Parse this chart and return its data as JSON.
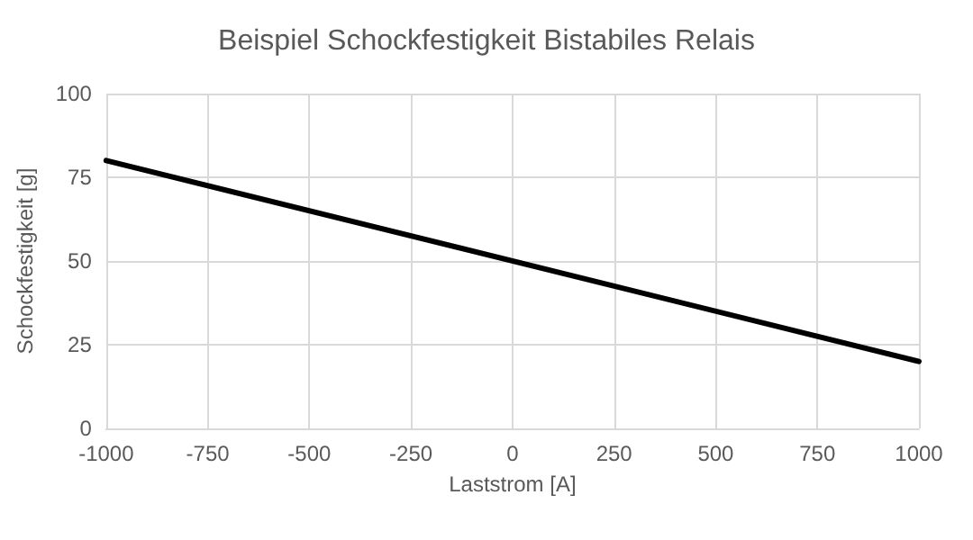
{
  "chart_data": {
    "type": "line",
    "title": "Beispiel Schockfestigkeit Bistabiles Relais",
    "xlabel": "Laststrom [A]",
    "ylabel": "Schockfestigkeit [g]",
    "x": [
      -1000,
      1000
    ],
    "series": [
      {
        "color": "#000000",
        "values": [
          80,
          20
        ]
      }
    ],
    "xlim": [
      -1000,
      1000
    ],
    "xticks": [
      -1000,
      -750,
      -500,
      -250,
      0,
      250,
      500,
      750,
      1000
    ],
    "ylim": [
      0,
      100
    ],
    "yticks": [
      0,
      25,
      50,
      75,
      100
    ],
    "grid": true,
    "marker": "none",
    "line_style": "solid"
  }
}
